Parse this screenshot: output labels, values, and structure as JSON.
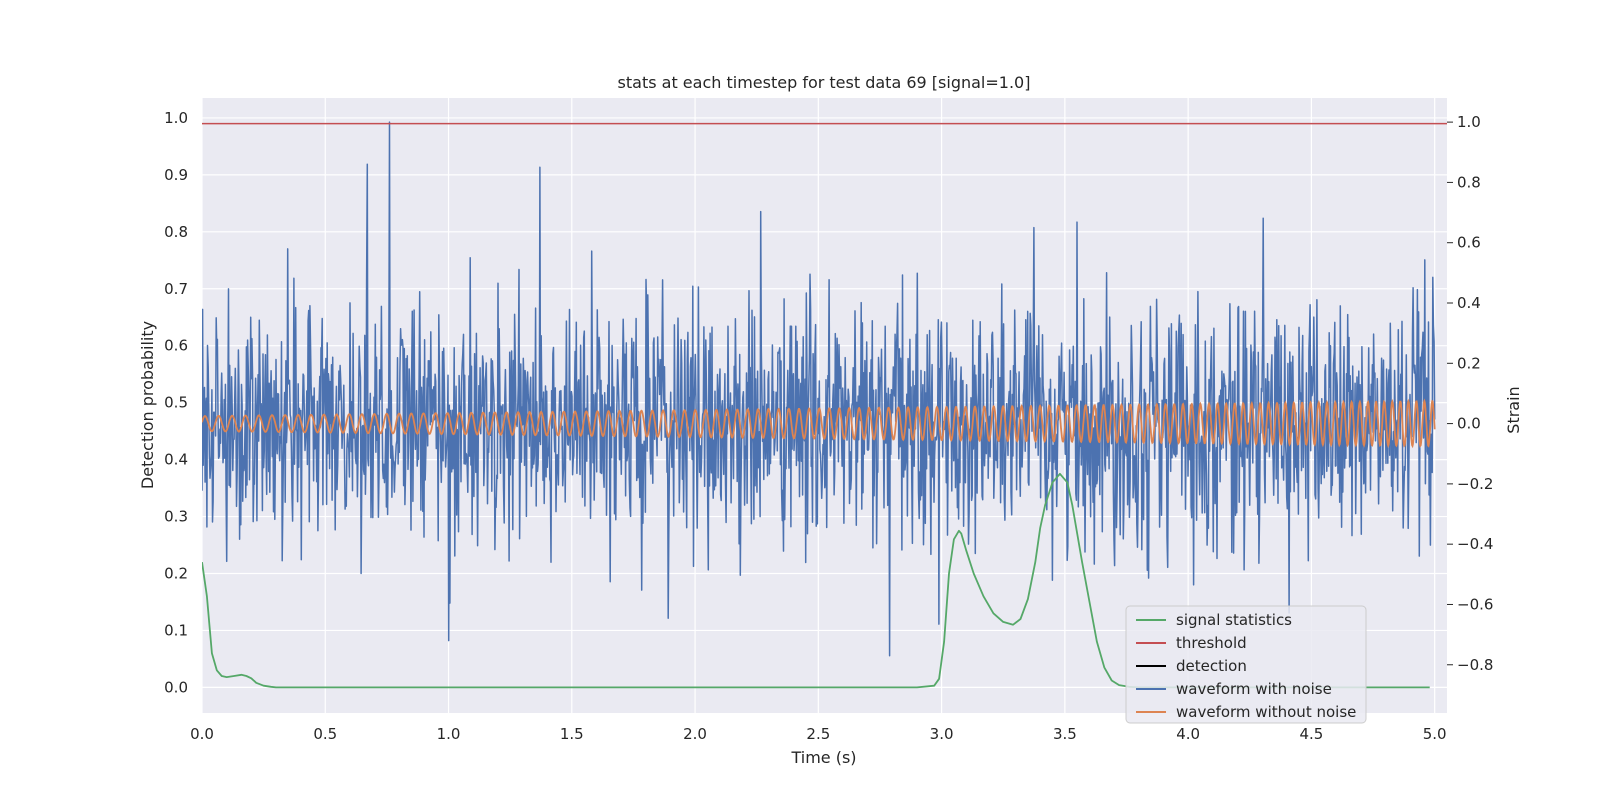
{
  "chart_data": {
    "type": "line",
    "title": "stats at each timestep for test data 69 [signal=1.0]",
    "xlabel": "Time (s)",
    "ylabel_left": "Detection probability",
    "ylabel_right": "Strain",
    "xlim": [
      0.0,
      5.05
    ],
    "ylim_left": [
      -0.045,
      1.035
    ],
    "ylim_right": [
      -0.96,
      1.08
    ],
    "x_ticks": [
      "0.0",
      "0.5",
      "1.0",
      "1.5",
      "2.0",
      "2.5",
      "3.0",
      "3.5",
      "4.0",
      "4.5",
      "5.0"
    ],
    "y_ticks_left": [
      "0.0",
      "0.1",
      "0.2",
      "0.3",
      "0.4",
      "0.5",
      "0.6",
      "0.7",
      "0.8",
      "0.9",
      "1.0"
    ],
    "y_ticks_right": [
      "−0.8",
      "−0.6",
      "−0.4",
      "−0.2",
      "0.0",
      "0.2",
      "0.4",
      "0.6",
      "0.8",
      "1.0"
    ],
    "grid": true,
    "legend_position": "lower-right",
    "series": [
      {
        "name": "signal statistics",
        "axis": "left",
        "color": "#55a868",
        "x": [
          0.0,
          0.02,
          0.04,
          0.06,
          0.08,
          0.1,
          0.13,
          0.16,
          0.18,
          0.2,
          0.22,
          0.25,
          0.28,
          0.3,
          0.4,
          1.0,
          2.0,
          2.9,
          2.97,
          2.99,
          3.01,
          3.03,
          3.05,
          3.07,
          3.08,
          3.1,
          3.13,
          3.17,
          3.21,
          3.25,
          3.29,
          3.32,
          3.35,
          3.38,
          3.4,
          3.42,
          3.45,
          3.48,
          3.51,
          3.53,
          3.55,
          3.57,
          3.6,
          3.63,
          3.66,
          3.69,
          3.72,
          3.76,
          3.8,
          4.0,
          4.5,
          4.98
        ],
        "y": [
          0.22,
          0.16,
          0.06,
          0.03,
          0.02,
          0.018,
          0.02,
          0.022,
          0.02,
          0.016,
          0.008,
          0.003,
          0.001,
          0.0,
          0.0,
          0.0,
          0.0,
          0.0,
          0.003,
          0.015,
          0.08,
          0.2,
          0.26,
          0.275,
          0.27,
          0.24,
          0.2,
          0.16,
          0.13,
          0.115,
          0.11,
          0.12,
          0.155,
          0.22,
          0.28,
          0.32,
          0.36,
          0.375,
          0.36,
          0.32,
          0.27,
          0.22,
          0.15,
          0.08,
          0.035,
          0.012,
          0.004,
          0.001,
          0.0,
          0.0,
          0.0,
          0.0
        ]
      },
      {
        "name": "threshold",
        "axis": "left",
        "color": "#c44e52",
        "x": [
          0.0,
          5.05
        ],
        "y": [
          0.99,
          0.99
        ]
      },
      {
        "name": "detection",
        "axis": "left",
        "color": "#000000",
        "x": [],
        "y": []
      },
      {
        "name": "waveform with noise",
        "axis": "right",
        "color": "#4c72b0",
        "x_range": [
          0.0,
          5.0
        ],
        "points": 2000,
        "approx_std": 0.2,
        "approx_min": -0.79,
        "approx_max": 1.0,
        "note_peaks": [
          [
            0.76,
            1.0
          ],
          [
            1.37,
            0.85
          ],
          [
            0.67,
            0.86
          ],
          [
            2.79,
            -0.77
          ],
          [
            1.0,
            -0.72
          ]
        ]
      },
      {
        "name": "waveform without noise",
        "axis": "right",
        "color": "#dd8452",
        "x_range": [
          0.0,
          5.0
        ],
        "amplitude_start": 0.025,
        "amplitude_end": 0.075,
        "frequency_start_hz": 18,
        "frequency_end_hz": 31
      }
    ]
  },
  "legend": {
    "items": [
      {
        "label": "signal statistics",
        "color": "#55a868"
      },
      {
        "label": "threshold",
        "color": "#c44e52"
      },
      {
        "label": "detection",
        "color": "#000000"
      },
      {
        "label": "waveform with noise",
        "color": "#4c72b0"
      },
      {
        "label": "waveform without noise",
        "color": "#dd8452"
      }
    ]
  },
  "style": {
    "plot_background": "#eaeaf2",
    "grid_color": "#ffffff"
  }
}
